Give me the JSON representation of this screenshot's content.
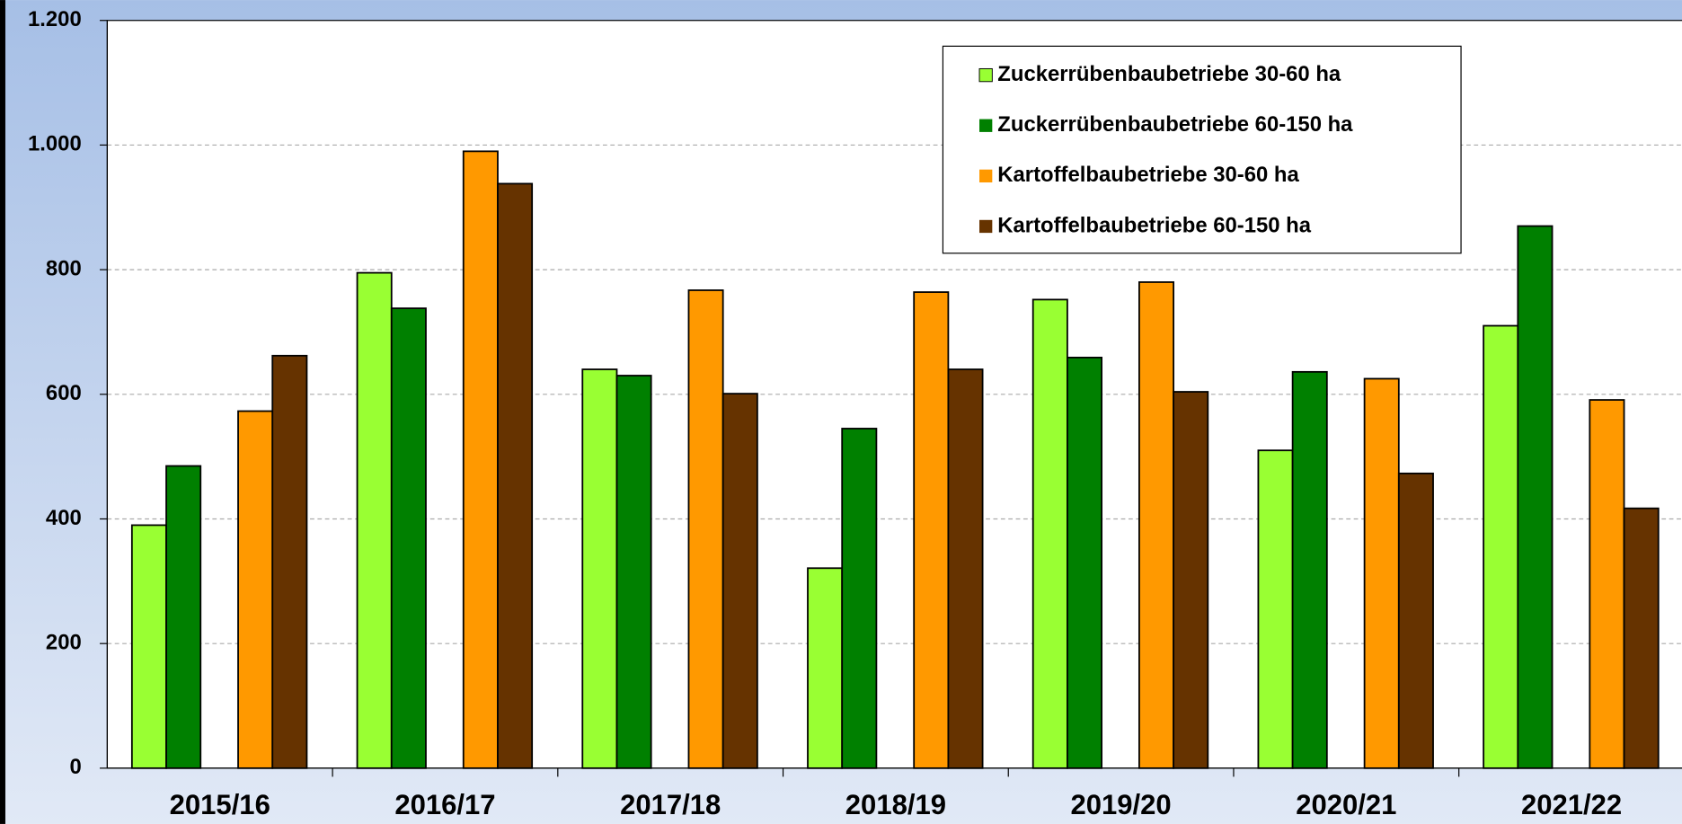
{
  "chart_data": {
    "type": "bar",
    "categories": [
      "2015/16",
      "2016/17",
      "2017/18",
      "2018/19",
      "2019/20",
      "2020/21",
      "2021/22"
    ],
    "series": [
      {
        "name": "Zuckerrübenbaubetriebe 30-60 ha",
        "color": "#99ff33",
        "values": [
          390,
          795,
          640,
          321,
          752,
          510,
          710
        ]
      },
      {
        "name": "Zuckerrübenbaubetriebe 60-150 ha",
        "color": "#008000",
        "values": [
          485,
          738,
          630,
          545,
          659,
          636,
          870
        ]
      },
      {
        "name": "Kartoffelbaubetriebe 30-60 ha",
        "color": "#ff9900",
        "values": [
          573,
          990,
          767,
          764,
          780,
          625,
          591
        ]
      },
      {
        "name": "Kartoffelbaubetriebe 60-150 ha",
        "color": "#663300",
        "values": [
          662,
          938,
          601,
          640,
          604,
          473,
          417
        ]
      }
    ],
    "ylim": [
      0,
      1200
    ],
    "yticks": [
      0,
      200,
      400,
      600,
      800,
      {
        "value": 1000,
        "label": "1.000"
      },
      {
        "value": 1200,
        "label": "1.200"
      }
    ],
    "grid": true,
    "legend": "top-right"
  }
}
